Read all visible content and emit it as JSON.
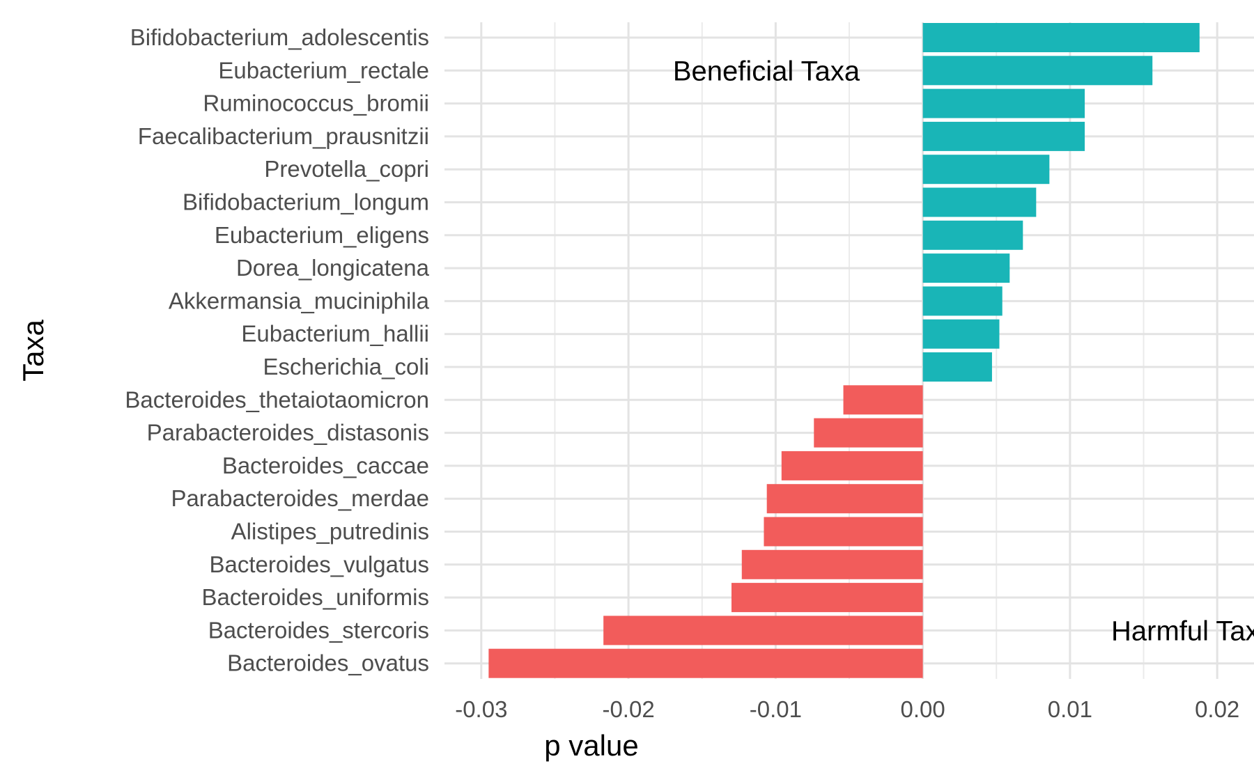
{
  "chart_data": {
    "type": "bar",
    "orientation": "horizontal",
    "xlabel": "p value",
    "ylabel": "Taxa",
    "xlim": [
      -0.0325,
      0.0225
    ],
    "xticks": [
      -0.03,
      -0.02,
      -0.01,
      0.0,
      0.01,
      0.02
    ],
    "xtick_labels": [
      "-0.03",
      "-0.02",
      "-0.01",
      "0.00",
      "0.01",
      "0.02"
    ],
    "grid": true,
    "legend": "none",
    "colors": {
      "beneficial": "#19B5B7",
      "harmful": "#F25C5B"
    },
    "annotations": [
      {
        "text": "Beneficial Taxa",
        "x": -0.0035,
        "category": "Eubacterium_rectale"
      },
      {
        "text": "Harmful Taxa",
        "x": 0.0135,
        "category": "Bacteroides_stercoris"
      }
    ],
    "categories": [
      "Bifidobacterium_adolescentis",
      "Eubacterium_rectale",
      "Ruminococcus_bromii",
      "Faecalibacterium_prausnitzii",
      "Prevotella_copri",
      "Bifidobacterium_longum",
      "Eubacterium_eligens",
      "Dorea_longicatena",
      "Akkermansia_muciniphila",
      "Eubacterium_hallii",
      "Escherichia_coli",
      "Bacteroides_thetaiotaomicron",
      "Parabacteroides_distasonis",
      "Bacteroides_caccae",
      "Parabacteroides_merdae",
      "Alistipes_putredinis",
      "Bacteroides_vulgatus",
      "Bacteroides_uniformis",
      "Bacteroides_stercoris",
      "Bacteroides_ovatus"
    ],
    "values": [
      0.0188,
      0.0156,
      0.011,
      0.011,
      0.0086,
      0.0077,
      0.0068,
      0.0059,
      0.0054,
      0.0052,
      0.0047,
      -0.0054,
      -0.0074,
      -0.0096,
      -0.0106,
      -0.0108,
      -0.0123,
      -0.013,
      -0.0217,
      -0.0295
    ],
    "groups": [
      "beneficial",
      "beneficial",
      "beneficial",
      "beneficial",
      "beneficial",
      "beneficial",
      "beneficial",
      "beneficial",
      "beneficial",
      "beneficial",
      "beneficial",
      "harmful",
      "harmful",
      "harmful",
      "harmful",
      "harmful",
      "harmful",
      "harmful",
      "harmful",
      "harmful"
    ]
  }
}
